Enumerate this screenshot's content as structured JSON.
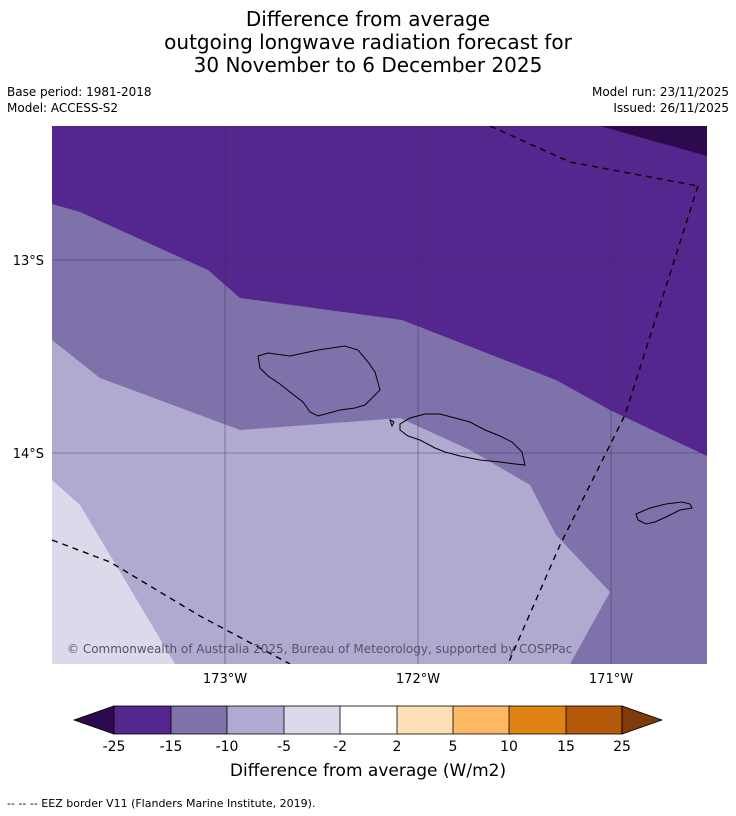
{
  "title_lines": [
    "Difference from average",
    "outgoing longwave radiation forecast for",
    "30 November to 6 December 2025"
  ],
  "meta_left": {
    "base_period": "Base period: 1981-2018",
    "model": "Model: ACCESS-S2"
  },
  "meta_right": {
    "model_run": "Model run: 23/11/2025",
    "issued": "Issued: 26/11/2025"
  },
  "axes": {
    "lat_labels": [
      "13°S",
      "14°S"
    ],
    "lon_labels": [
      "173°W",
      "172°W",
      "171°W"
    ]
  },
  "copyright": "© Commonwealth of Australia 2025, Bureau of Meteorology, supported by COSPPac",
  "colorbar": {
    "ticks": [
      "-25",
      "-15",
      "-10",
      "-5",
      "-2",
      "2",
      "5",
      "10",
      "15",
      "25"
    ],
    "colors": {
      "below_-25": "#2d0a4e",
      "-25_-15": "#54278f",
      "-15_-10": "#7f72ab",
      "-10_-5": "#b0aad1",
      "-5_-2": "#dadaeb",
      "-2_2": "#ffffff",
      "2_5": "#fee0b6",
      "5_10": "#fdb863",
      "10_15": "#e08214",
      "15_25": "#b35806",
      "above_25": "#7f3b08"
    },
    "label": "Difference from average (W/m2)"
  },
  "legend_footer": "--  --  -- EEZ border V11 (Flanders Marine Institute, 2019)."
}
